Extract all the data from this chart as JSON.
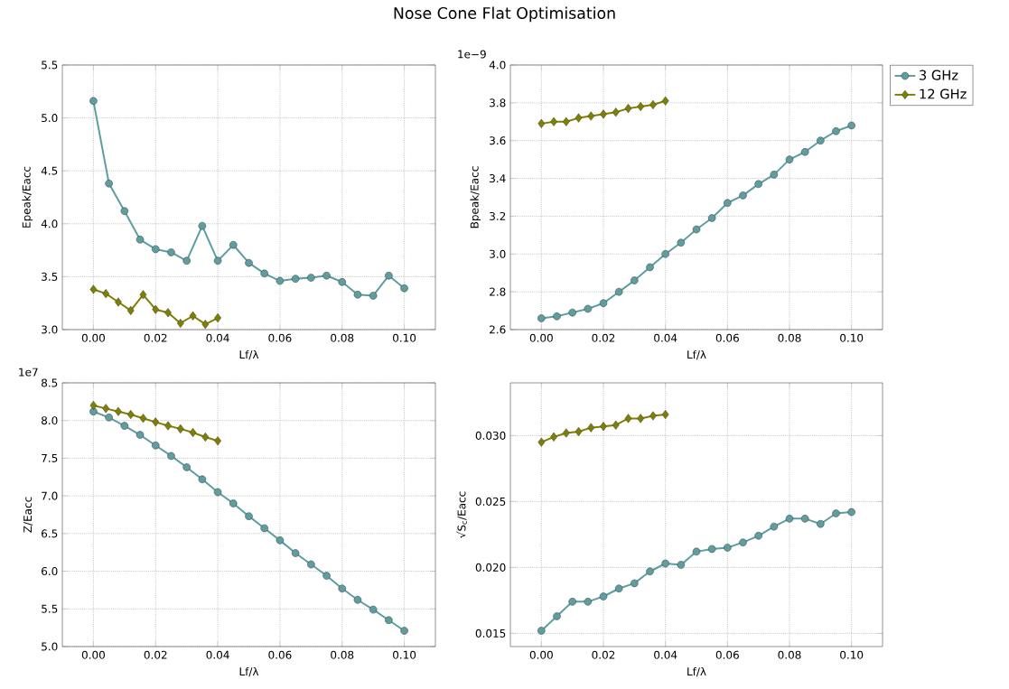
{
  "chart_data": [
    {
      "type": "line",
      "title": "Nose Cone Flat Optimisation",
      "xlabel": "Lf/λ",
      "ylabel": "Epeak/Eacc",
      "grid": true,
      "xlim": [
        -0.01,
        0.11
      ],
      "xticks": [
        {
          "value": 0,
          "label": "0.00"
        },
        {
          "value": 0.02,
          "label": "0.02"
        },
        {
          "value": 0.04,
          "label": "0.04"
        },
        {
          "value": 0.06,
          "label": "0.06"
        },
        {
          "value": 0.08,
          "label": "0.08"
        },
        {
          "value": 0.1,
          "label": "0.10"
        }
      ],
      "ylim": [
        3.0,
        5.5
      ],
      "yticks": [
        {
          "value": 3.0,
          "label": "3.0"
        },
        {
          "value": 3.5,
          "label": "3.5"
        },
        {
          "value": 4.0,
          "label": "4.0"
        },
        {
          "value": 4.5,
          "label": "4.5"
        },
        {
          "value": 5.0,
          "label": "5.0"
        },
        {
          "value": 5.5,
          "label": "5.5"
        }
      ],
      "series": [
        {
          "color": "#5f9ea0",
          "marker": "circle",
          "x": [
            0,
            0.005,
            0.01,
            0.015,
            0.02,
            0.025,
            0.03,
            0.035,
            0.04,
            0.045,
            0.05,
            0.055,
            0.06,
            0.065,
            0.07,
            0.075,
            0.08,
            0.085,
            0.09,
            0.095,
            0.1
          ],
          "values": [
            5.16,
            4.38,
            4.12,
            3.85,
            3.76,
            3.73,
            3.65,
            3.98,
            3.65,
            3.8,
            3.63,
            3.53,
            3.46,
            3.48,
            3.49,
            3.51,
            3.45,
            3.33,
            3.32,
            3.51,
            3.39
          ]
        },
        {
          "color": "#808000",
          "marker": "diamond",
          "x": [
            0,
            0.004,
            0.008,
            0.012,
            0.016,
            0.02,
            0.024,
            0.028,
            0.032,
            0.036,
            0.04
          ],
          "values": [
            3.38,
            3.34,
            3.26,
            3.18,
            3.33,
            3.19,
            3.16,
            3.06,
            3.13,
            3.05,
            3.11
          ]
        }
      ]
    },
    {
      "type": "line",
      "xlabel": "Lf/λ",
      "ylabel": "Bpeak/Eacc",
      "grid": true,
      "legend": "top right",
      "annotations": [
        "1e−9"
      ],
      "xlim": [
        -0.01,
        0.11
      ],
      "xticks": [
        {
          "value": 0,
          "label": "0.00"
        },
        {
          "value": 0.02,
          "label": "0.02"
        },
        {
          "value": 0.04,
          "label": "0.04"
        },
        {
          "value": 0.06,
          "label": "0.06"
        },
        {
          "value": 0.08,
          "label": "0.08"
        },
        {
          "value": 0.1,
          "label": "0.10"
        }
      ],
      "ylim": [
        2.6,
        4.0
      ],
      "yticks": [
        {
          "value": 2.6,
          "label": "2.6"
        },
        {
          "value": 2.8,
          "label": "2.8"
        },
        {
          "value": 3.0,
          "label": "3.0"
        },
        {
          "value": 3.2,
          "label": "3.2"
        },
        {
          "value": 3.4,
          "label": "3.4"
        },
        {
          "value": 3.6,
          "label": "3.6"
        },
        {
          "value": 3.8,
          "label": "3.8"
        },
        {
          "value": 4.0,
          "label": "4.0"
        }
      ],
      "series": [
        {
          "name": "3 GHz",
          "color": "#5f9ea0",
          "marker": "circle",
          "x": [
            0,
            0.005,
            0.01,
            0.015,
            0.02,
            0.025,
            0.03,
            0.035,
            0.04,
            0.045,
            0.05,
            0.055,
            0.06,
            0.065,
            0.07,
            0.075,
            0.08,
            0.085,
            0.09,
            0.095,
            0.1
          ],
          "values": [
            2.66,
            2.67,
            2.69,
            2.71,
            2.74,
            2.8,
            2.86,
            2.93,
            3.0,
            3.06,
            3.13,
            3.19,
            3.27,
            3.31,
            3.37,
            3.42,
            3.5,
            3.54,
            3.6,
            3.65,
            3.68
          ]
        },
        {
          "name": "12 GHz",
          "color": "#808000",
          "marker": "diamond",
          "x": [
            0,
            0.004,
            0.008,
            0.012,
            0.016,
            0.02,
            0.024,
            0.028,
            0.032,
            0.036,
            0.04
          ],
          "values": [
            3.69,
            3.7,
            3.7,
            3.72,
            3.73,
            3.74,
            3.75,
            3.77,
            3.78,
            3.79,
            3.81
          ]
        }
      ]
    },
    {
      "type": "line",
      "xlabel": "Lf/λ",
      "ylabel": "Z/Eacc",
      "grid": true,
      "annotations": [
        "1e7"
      ],
      "xlim": [
        -0.01,
        0.11
      ],
      "xticks": [
        {
          "value": 0,
          "label": "0.00"
        },
        {
          "value": 0.02,
          "label": "0.02"
        },
        {
          "value": 0.04,
          "label": "0.04"
        },
        {
          "value": 0.06,
          "label": "0.06"
        },
        {
          "value": 0.08,
          "label": "0.08"
        },
        {
          "value": 0.1,
          "label": "0.10"
        }
      ],
      "ylim": [
        5.0,
        8.5
      ],
      "yticks": [
        {
          "value": 5.0,
          "label": "5.0"
        },
        {
          "value": 5.5,
          "label": "5.5"
        },
        {
          "value": 6.0,
          "label": "6.0"
        },
        {
          "value": 6.5,
          "label": "6.5"
        },
        {
          "value": 7.0,
          "label": "7.0"
        },
        {
          "value": 7.5,
          "label": "7.5"
        },
        {
          "value": 8.0,
          "label": "8.0"
        },
        {
          "value": 8.5,
          "label": "8.5"
        }
      ],
      "series": [
        {
          "color": "#5f9ea0",
          "marker": "circle",
          "x": [
            0,
            0.005,
            0.01,
            0.015,
            0.02,
            0.025,
            0.03,
            0.035,
            0.04,
            0.045,
            0.05,
            0.055,
            0.06,
            0.065,
            0.07,
            0.075,
            0.08,
            0.085,
            0.09,
            0.095,
            0.1
          ],
          "values": [
            8.12,
            8.04,
            7.93,
            7.81,
            7.67,
            7.53,
            7.38,
            7.22,
            7.05,
            6.9,
            6.73,
            6.57,
            6.41,
            6.24,
            6.09,
            5.94,
            5.77,
            5.62,
            5.49,
            5.35,
            5.21
          ]
        },
        {
          "color": "#808000",
          "marker": "diamond",
          "x": [
            0,
            0.004,
            0.008,
            0.012,
            0.016,
            0.02,
            0.024,
            0.028,
            0.032,
            0.036,
            0.04
          ],
          "values": [
            8.2,
            8.16,
            8.12,
            8.08,
            8.03,
            7.98,
            7.93,
            7.89,
            7.84,
            7.78,
            7.73
          ]
        }
      ]
    },
    {
      "type": "line",
      "xlabel": "Lf/λ",
      "ylabel": "√S$_{c}$/Eacc",
      "grid": true,
      "xlim": [
        -0.01,
        0.11
      ],
      "xticks": [
        {
          "value": 0,
          "label": "0.00"
        },
        {
          "value": 0.02,
          "label": "0.02"
        },
        {
          "value": 0.04,
          "label": "0.04"
        },
        {
          "value": 0.06,
          "label": "0.06"
        },
        {
          "value": 0.08,
          "label": "0.08"
        },
        {
          "value": 0.1,
          "label": "0.10"
        }
      ],
      "ylim": [
        0.014,
        0.034
      ],
      "yticks": [
        0.015,
        {
          "value": 0.02,
          "label": "0.020"
        },
        0.025,
        {
          "value": 0.03,
          "label": "0.030"
        }
      ],
      "series": [
        {
          "color": "#5f9ea0",
          "marker": "circle",
          "x": [
            0,
            0.005,
            0.01,
            0.015,
            0.02,
            0.025,
            0.03,
            0.035,
            0.04,
            0.045,
            0.05,
            0.055,
            0.06,
            0.065,
            0.07,
            0.075,
            0.08,
            0.085,
            0.09,
            0.095,
            0.1
          ],
          "values": [
            0.0152,
            0.0163,
            0.0174,
            0.0174,
            0.0178,
            0.0184,
            0.0188,
            0.0197,
            0.0203,
            0.0202,
            0.0212,
            0.0214,
            0.0215,
            0.0219,
            0.0224,
            0.0231,
            0.0237,
            0.0237,
            0.0233,
            0.0241,
            0.0242
          ]
        },
        {
          "color": "#808000",
          "marker": "diamond",
          "x": [
            0,
            0.004,
            0.008,
            0.012,
            0.016,
            0.02,
            0.024,
            0.028,
            0.032,
            0.036,
            0.04
          ],
          "values": [
            0.0295,
            0.0299,
            0.0302,
            0.0303,
            0.0306,
            0.0307,
            0.0308,
            0.0313,
            0.0313,
            0.0315,
            0.0316
          ]
        }
      ]
    }
  ]
}
